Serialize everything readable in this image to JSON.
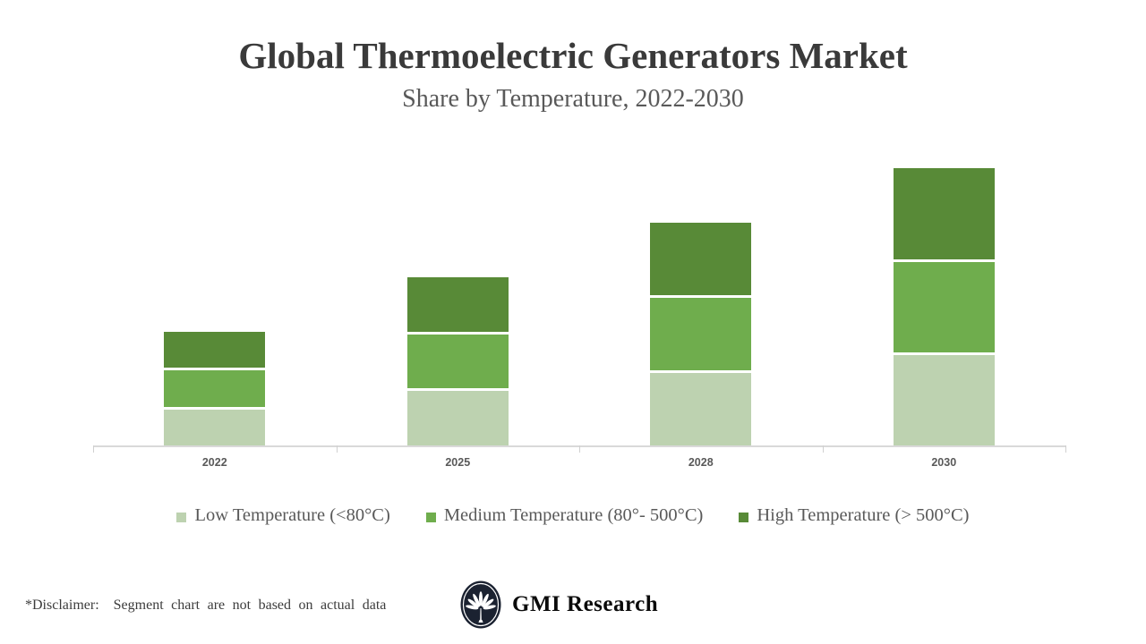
{
  "page": {
    "background": "#ffffff"
  },
  "header": {
    "title": "Global Thermoelectric Generators Market",
    "subtitle": "Share by Temperature, 2022-2030"
  },
  "chart_data": {
    "type": "bar",
    "stacked": true,
    "title": "Global Thermoelectric Generators Market",
    "subtitle": "Share by Temperature, 2022-2030",
    "xlabel": "",
    "ylabel": "",
    "categories": [
      "2022",
      "2025",
      "2028",
      "2030"
    ],
    "series": [
      {
        "name": "Low Temperature (<80°C)",
        "color": "#bdd2b0",
        "values": [
          10,
          15,
          20,
          25
        ]
      },
      {
        "name": "Medium Temperature (80°- 500°C)",
        "color": "#6fad4d",
        "values": [
          10,
          15,
          20,
          25
        ]
      },
      {
        "name": "High Temperature (> 500°C)",
        "color": "#588a37",
        "values": [
          10,
          15,
          20,
          25
        ]
      }
    ],
    "totals": [
      30,
      45,
      60,
      75
    ],
    "ylim": [
      0,
      80
    ],
    "grid": false,
    "y_axis_shown": false,
    "legend_position": "bottom"
  },
  "axis": {
    "line_color": "#d9d9d9",
    "label_color": "#595959"
  },
  "footer": {
    "disclaimer_label": "*Disclaimer:",
    "disclaimer_text": "Segment chart are not based on actual data",
    "logo_text": "GMI Research",
    "logo_color": "#1b2231"
  }
}
